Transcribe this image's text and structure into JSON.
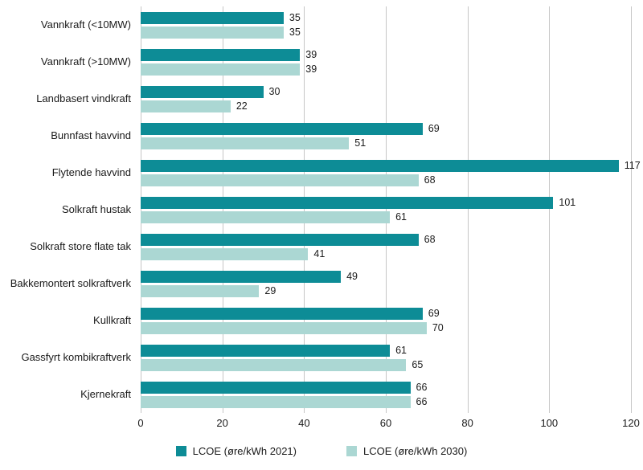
{
  "chart_data": {
    "type": "bar",
    "orientation": "horizontal",
    "title": "",
    "xlabel": "",
    "ylabel": "",
    "xlim": [
      0,
      120
    ],
    "xticks": [
      0,
      20,
      40,
      60,
      80,
      100,
      120
    ],
    "grid": true,
    "legend_position": "bottom",
    "categories": [
      "Vannkraft (<10MW)",
      "Vannkraft (>10MW)",
      "Landbasert vindkraft",
      "Bunnfast havvind",
      "Flytende havvind",
      "Solkraft hustak",
      "Solkraft store flate tak",
      "Bakkemontert solkraftverk",
      "Kullkraft",
      "Gassfyrt kombikraftverk",
      "Kjernekraft"
    ],
    "series": [
      {
        "name": "LCOE (øre/kWh 2021)",
        "color": "#0d8c96",
        "values": [
          35,
          39,
          30,
          69,
          117,
          101,
          68,
          49,
          69,
          61,
          66
        ]
      },
      {
        "name": "LCOE (øre/kWh 2030)",
        "color": "#abd7d3",
        "values": [
          35,
          39,
          22,
          51,
          68,
          61,
          41,
          29,
          70,
          65,
          66
        ]
      }
    ],
    "colors": {
      "gridline": "#c6c6c6",
      "text": "#1a1a1a",
      "background": "#ffffff"
    }
  }
}
